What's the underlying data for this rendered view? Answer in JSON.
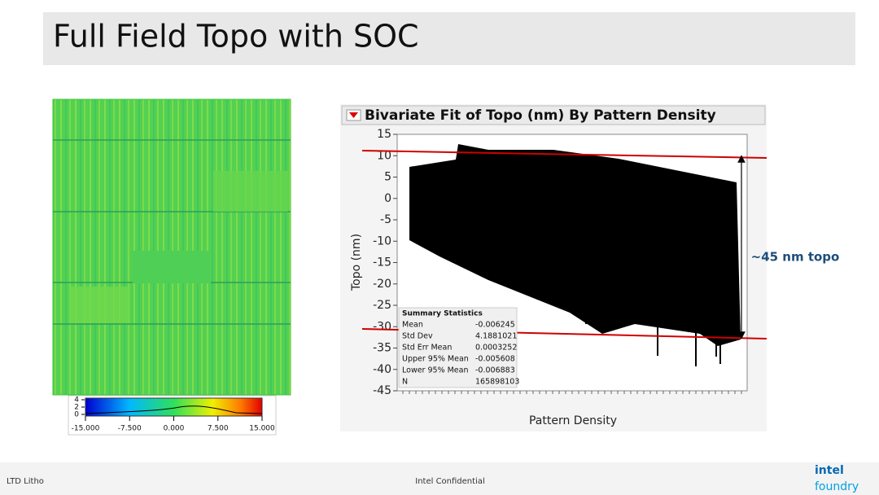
{
  "header": {
    "title": "Full Field Topo with SOC"
  },
  "topo_map": {
    "colorbar": {
      "ticks": [
        {
          "value": -15,
          "label": "-15.000"
        },
        {
          "value": -7.5,
          "label": "-7.500"
        },
        {
          "value": 0,
          "label": "0.000"
        },
        {
          "value": 7.5,
          "label": "7.500"
        },
        {
          "value": 15,
          "label": "15.000"
        }
      ],
      "lim": [
        -15,
        15
      ],
      "hist_ticks": [
        4,
        2,
        0
      ],
      "hist_lim": [
        0,
        4
      ]
    }
  },
  "plot": {
    "title": "Bivariate Fit of Topo (nm) By Pattern Density",
    "y_label": "Topo (nm)",
    "x_label": "Pattern Density",
    "ylim": [
      -45,
      15
    ],
    "yticks": [
      15,
      10,
      5,
      0,
      -5,
      -10,
      -15,
      -20,
      -25,
      -30,
      -35,
      -40,
      -45
    ],
    "annotation": "~45 nm topo",
    "summary": {
      "title": "Summary Statistics",
      "rows": [
        [
          "Mean",
          "-0.006245"
        ],
        [
          "Std Dev",
          "4.1881021"
        ],
        [
          "Std Err Mean",
          "0.0003252"
        ],
        [
          "Upper 95% Mean",
          "-0.005608"
        ],
        [
          "Lower 95% Mean",
          "-0.006883"
        ],
        [
          "N",
          "165898103"
        ]
      ]
    }
  },
  "footer": {
    "left": "LTD Litho",
    "center": "Intel Confidential",
    "logo_top": "intel",
    "logo_bottom": "foundry"
  }
}
